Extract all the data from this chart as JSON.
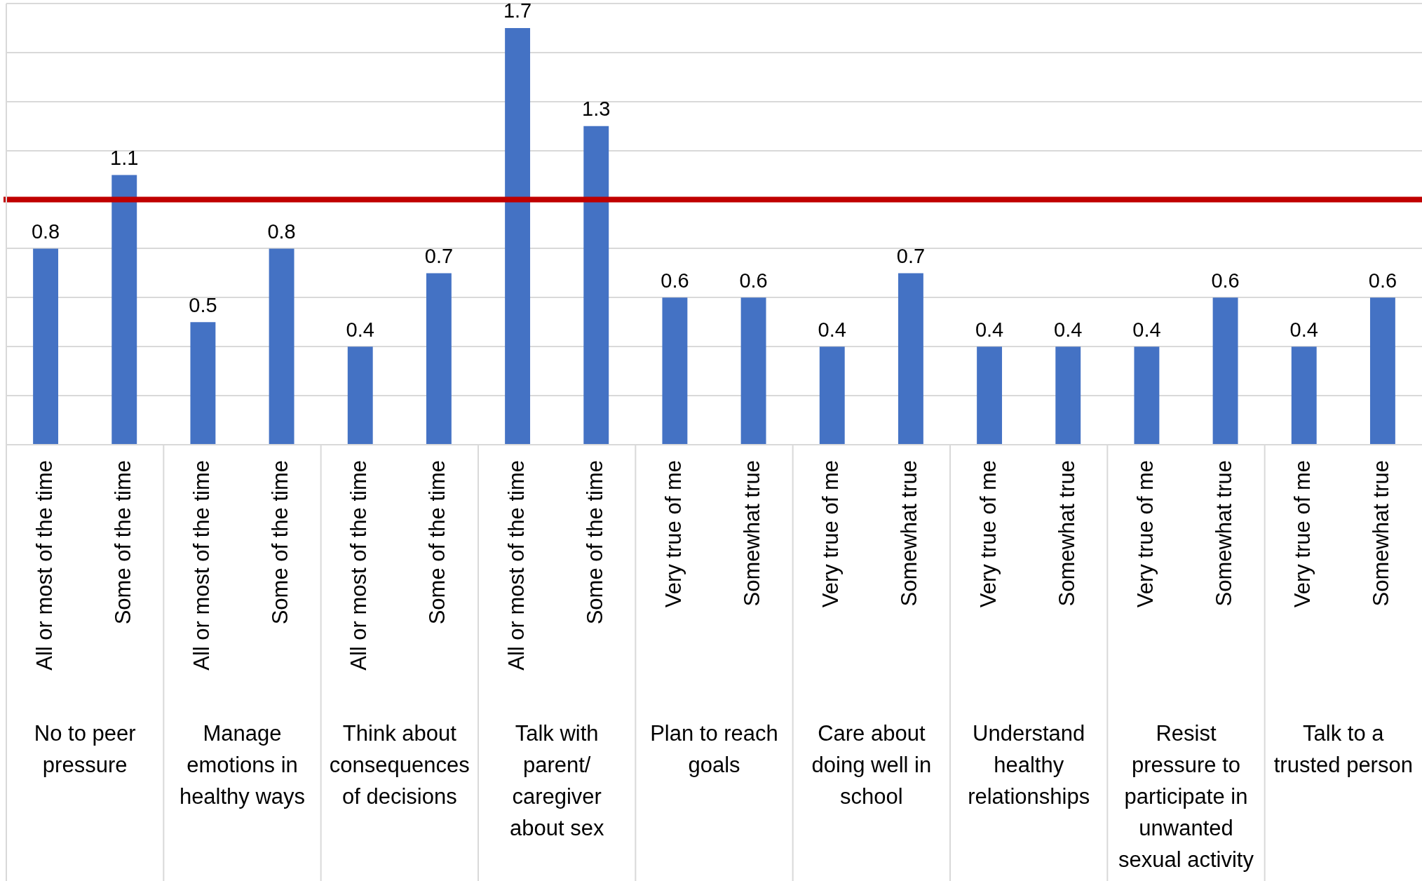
{
  "chart_data": {
    "type": "bar",
    "categories": [
      "All or most of the time",
      "Some of the time",
      "All or most of the time",
      "Some of the time",
      "All or most of the time",
      "Some of the time",
      "All or most of the time",
      "Some of the time",
      "Very true of me",
      "Somewhat true",
      "Very true of me",
      "Somewhat true",
      "Very true of me",
      "Somewhat true",
      "Very true of me",
      "Somewhat true",
      "Very true of me",
      "Somewhat true"
    ],
    "values": [
      0.8,
      1.1,
      0.5,
      0.8,
      0.4,
      0.7,
      1.7,
      1.3,
      0.6,
      0.6,
      0.4,
      0.7,
      0.4,
      0.4,
      0.4,
      0.6,
      0.4,
      0.6
    ],
    "color": "#4472c4",
    "data_labels": true,
    "ylim": [
      0,
      1.8
    ],
    "yticks": [
      {
        "value": 0,
        "label": null
      },
      {
        "value": 0.2,
        "label": null
      },
      {
        "value": 0.4,
        "label": null
      },
      {
        "value": 0.6,
        "label": null
      },
      {
        "value": 0.8,
        "label": null
      },
      {
        "value": 1.0,
        "label": null
      },
      {
        "value": 1.2,
        "label": null
      },
      {
        "value": 1.4,
        "label": null
      },
      {
        "value": 1.6,
        "label": null
      },
      {
        "value": 1.8,
        "label": null
      }
    ],
    "tick_labels": "x",
    "grid": "y",
    "legend": false,
    "ref_lines": [
      {
        "axis": "y",
        "value": 1.0,
        "color": "#c00000"
      }
    ],
    "annotations": [
      "No to peer pressure",
      "Manage emotions in healthy ways",
      "Think about consequences of decisions",
      "Talk with parent/caregiver about sex",
      "Plan to reach goals",
      "Care about doing well in school",
      "Understand healthy relationships",
      "Resist pressure to participate in unwanted sexual activity",
      "Talk to a trusted person"
    ]
  }
}
